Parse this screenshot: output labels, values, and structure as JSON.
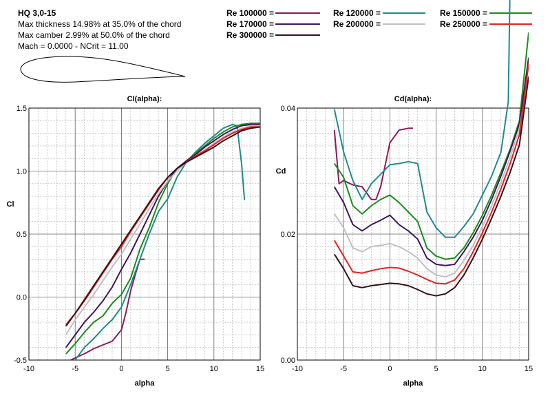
{
  "header": {
    "airfoil_name": "HQ 3,0-15",
    "lines": [
      "Max thickness 14.98% at 35.0% of the chord",
      "Max camber 2.99% at 50.0% of the chord",
      "Mach = 0.0000 - NCrit = 11.00"
    ]
  },
  "legend": [
    {
      "label": "Re 100000 =",
      "color": "#8b1a5a"
    },
    {
      "label": "Re 120000 =",
      "color": "#1f8a8f"
    },
    {
      "label": "Re 150000 =",
      "color": "#1a8c1a"
    },
    {
      "label": "Re 170000 =",
      "color": "#3d1660"
    },
    {
      "label": "Re 200000 =",
      "color": "#c0c0c0"
    },
    {
      "label": "Re 250000 =",
      "color": "#e8201c"
    },
    {
      "label": "Re 300000 =",
      "color": "#3a0d14"
    }
  ],
  "chart_data": [
    {
      "type": "line",
      "title": "Cl(alpha):",
      "xlabel": "alpha",
      "ylabel": "Cl",
      "xlim": [
        -10,
        15
      ],
      "ylim": [
        -0.5,
        1.5
      ],
      "xticks": [
        "-10",
        "-5",
        "0",
        "5",
        "10",
        "15"
      ],
      "yticks": [
        "-0.5",
        "0.0",
        "0.5",
        "1.0",
        "1.5"
      ],
      "grid": true,
      "series": [
        {
          "name": "Re 100000",
          "color": "#8b1a5a",
          "x": [
            -5.5,
            -4,
            -3,
            -2,
            -1,
            0,
            0.5,
            1,
            1.5,
            2,
            2.5
          ],
          "y": [
            -0.5,
            -0.45,
            -0.41,
            -0.38,
            -0.35,
            -0.26,
            -0.12,
            0.05,
            0.18,
            0.3,
            0.3
          ]
        },
        {
          "name": "Re 120000",
          "color": "#1f8a8f",
          "x": [
            -6,
            -5,
            -4,
            -3,
            -2,
            -1,
            0,
            1,
            2,
            3,
            4,
            5,
            6,
            7,
            8,
            9,
            10,
            11,
            12,
            12.5,
            13,
            13.3
          ],
          "y": [
            -0.58,
            -0.5,
            -0.4,
            -0.33,
            -0.25,
            -0.18,
            -0.08,
            0.1,
            0.3,
            0.5,
            0.68,
            0.78,
            0.95,
            1.07,
            1.15,
            1.22,
            1.28,
            1.34,
            1.37,
            1.36,
            1.05,
            0.77
          ]
        },
        {
          "name": "Re 150000",
          "color": "#1a8c1a",
          "x": [
            -6,
            -5,
            -4,
            -3,
            -2,
            -1,
            0,
            1,
            2,
            3,
            4,
            5,
            6,
            7,
            8,
            9,
            10,
            11,
            12,
            13,
            14,
            15
          ],
          "y": [
            -0.45,
            -0.37,
            -0.28,
            -0.2,
            -0.15,
            -0.05,
            0.02,
            0.15,
            0.38,
            0.55,
            0.75,
            0.9,
            1.02,
            1.08,
            1.14,
            1.2,
            1.26,
            1.31,
            1.35,
            1.37,
            1.38,
            1.38
          ]
        },
        {
          "name": "Re 170000",
          "color": "#3d1660",
          "x": [
            -6,
            -5,
            -4,
            -3,
            -2,
            -1,
            0,
            1,
            2,
            3,
            4,
            5,
            6,
            7,
            8,
            9,
            10,
            11,
            12,
            13,
            14,
            15
          ],
          "y": [
            -0.4,
            -0.3,
            -0.2,
            -0.12,
            -0.03,
            0.08,
            0.22,
            0.35,
            0.5,
            0.65,
            0.8,
            0.92,
            1.02,
            1.08,
            1.13,
            1.19,
            1.24,
            1.29,
            1.33,
            1.36,
            1.37,
            1.37
          ]
        },
        {
          "name": "Re 200000",
          "color": "#c0c0c0",
          "x": [
            -6,
            -5,
            -4,
            -3,
            -2,
            -1,
            0,
            1,
            2,
            3,
            4,
            5,
            6,
            7,
            8,
            9,
            10,
            11,
            12,
            13,
            14,
            15
          ],
          "y": [
            -0.3,
            -0.18,
            -0.08,
            0.02,
            0.13,
            0.24,
            0.34,
            0.46,
            0.58,
            0.7,
            0.82,
            0.92,
            1.0,
            1.07,
            1.12,
            1.17,
            1.22,
            1.27,
            1.31,
            1.34,
            1.36,
            1.36
          ]
        },
        {
          "name": "Re 250000",
          "color": "#e8201c",
          "x": [
            -6,
            -5,
            -4,
            -3,
            -2,
            -1,
            0,
            1,
            2,
            3,
            4,
            5,
            6,
            7,
            8,
            9,
            10,
            11,
            12,
            13,
            14,
            15
          ],
          "y": [
            -0.22,
            -0.13,
            -0.03,
            0.08,
            0.19,
            0.3,
            0.4,
            0.52,
            0.63,
            0.74,
            0.85,
            0.95,
            1.02,
            1.07,
            1.12,
            1.16,
            1.21,
            1.26,
            1.3,
            1.33,
            1.35,
            1.35
          ]
        },
        {
          "name": "Re 300000",
          "color": "#3a0d14",
          "x": [
            -6,
            -5,
            -4,
            -3,
            -2,
            -1,
            0,
            1,
            2,
            3,
            4,
            5,
            6,
            7,
            8,
            9,
            10,
            11,
            12,
            13,
            14,
            15
          ],
          "y": [
            -0.23,
            -0.13,
            -0.02,
            0.09,
            0.2,
            0.31,
            0.42,
            0.53,
            0.64,
            0.75,
            0.86,
            0.95,
            1.02,
            1.07,
            1.11,
            1.15,
            1.19,
            1.24,
            1.28,
            1.32,
            1.34,
            1.35
          ]
        }
      ]
    },
    {
      "type": "line",
      "title": "Cd(alpha):",
      "xlabel": "alpha",
      "ylabel": "Cd",
      "xlim": [
        -10,
        15
      ],
      "ylim": [
        0.0,
        0.04
      ],
      "xticks": [
        "-10",
        "-5",
        "0",
        "5",
        "10",
        "15"
      ],
      "yticks": [
        "0.00",
        "0.02",
        "0.04"
      ],
      "grid": true,
      "series": [
        {
          "name": "Re 100000",
          "color": "#8b1a5a",
          "x": [
            -6,
            -5.5,
            -5,
            -4,
            -3,
            -2,
            -1.5,
            -1,
            0,
            1,
            2,
            2.5
          ],
          "y": [
            0.0365,
            0.028,
            0.0285,
            0.0278,
            0.0275,
            0.0255,
            0.0255,
            0.0275,
            0.0345,
            0.0365,
            0.0368,
            0.0368
          ]
        },
        {
          "name": "Re 120000",
          "color": "#1f8a8f",
          "x": [
            -6,
            -5,
            -4,
            -3,
            -2,
            -1,
            0,
            1,
            2,
            3,
            4,
            5,
            6,
            7,
            8,
            9,
            10,
            11,
            12,
            12.8,
            13
          ],
          "y": [
            0.0398,
            0.033,
            0.0285,
            0.0255,
            0.028,
            0.0295,
            0.031,
            0.0312,
            0.0315,
            0.0312,
            0.0235,
            0.021,
            0.0195,
            0.0195,
            0.0212,
            0.0232,
            0.0262,
            0.0292,
            0.033,
            0.041,
            0.0605
          ]
        },
        {
          "name": "Re 150000",
          "color": "#1a8c1a",
          "x": [
            -6,
            -5,
            -4,
            -3,
            -2,
            -1,
            0,
            1,
            2,
            3,
            4,
            5,
            6,
            7,
            8,
            9,
            10,
            11,
            12,
            13,
            14,
            15
          ],
          "y": [
            0.0312,
            0.029,
            0.0245,
            0.0232,
            0.0245,
            0.0255,
            0.0262,
            0.025,
            0.0235,
            0.022,
            0.0178,
            0.0165,
            0.016,
            0.0162,
            0.0178,
            0.0202,
            0.023,
            0.0262,
            0.0298,
            0.0335,
            0.038,
            0.052
          ]
        },
        {
          "name": "Re 170000",
          "color": "#3d1660",
          "x": [
            -6,
            -5,
            -4,
            -3,
            -2,
            -1,
            0,
            1,
            2,
            3,
            4,
            5,
            6,
            7,
            8,
            9,
            10,
            11,
            12,
            13,
            14,
            15
          ],
          "y": [
            0.0275,
            0.025,
            0.0215,
            0.0205,
            0.0215,
            0.0222,
            0.023,
            0.0215,
            0.0205,
            0.0192,
            0.0162,
            0.0152,
            0.015,
            0.0152,
            0.0172,
            0.0195,
            0.0222,
            0.0255,
            0.0292,
            0.0332,
            0.0375,
            0.048
          ]
        },
        {
          "name": "Re 200000",
          "color": "#c0c0c0",
          "x": [
            -6,
            -5,
            -4,
            -3,
            -2,
            -1,
            0,
            1,
            2,
            3,
            4,
            5,
            6,
            7,
            8,
            9,
            10,
            11,
            12,
            13,
            14,
            15
          ],
          "y": [
            0.0232,
            0.021,
            0.0178,
            0.0172,
            0.018,
            0.0182,
            0.0185,
            0.018,
            0.0172,
            0.0162,
            0.0145,
            0.0135,
            0.0132,
            0.0138,
            0.0158,
            0.0182,
            0.0212,
            0.0245,
            0.0282,
            0.0322,
            0.0368,
            0.045
          ]
        },
        {
          "name": "Re 250000",
          "color": "#e8201c",
          "x": [
            -6,
            -5,
            -4,
            -3,
            -2,
            -1,
            0,
            1,
            2,
            3,
            4,
            5,
            6,
            7,
            8,
            9,
            10,
            11,
            12,
            13,
            14,
            15
          ],
          "y": [
            0.019,
            0.0165,
            0.014,
            0.0138,
            0.0142,
            0.0145,
            0.0147,
            0.0146,
            0.0141,
            0.0135,
            0.0128,
            0.0122,
            0.0121,
            0.0127,
            0.0145,
            0.0172,
            0.0202,
            0.0235,
            0.0272,
            0.0312,
            0.0358,
            0.047
          ]
        },
        {
          "name": "Re 300000",
          "color": "#3a0d14",
          "x": [
            -6,
            -5,
            -4,
            -3,
            -2,
            -1,
            0,
            1,
            2,
            3,
            4,
            5,
            6,
            7,
            8,
            9,
            10,
            11,
            12,
            13,
            14,
            15
          ],
          "y": [
            0.0168,
            0.0145,
            0.0118,
            0.0115,
            0.0118,
            0.012,
            0.0122,
            0.0121,
            0.0118,
            0.0112,
            0.0105,
            0.0102,
            0.0105,
            0.0115,
            0.0135,
            0.0162,
            0.0192,
            0.0225,
            0.026,
            0.0298,
            0.0342,
            0.045
          ]
        }
      ]
    }
  ]
}
